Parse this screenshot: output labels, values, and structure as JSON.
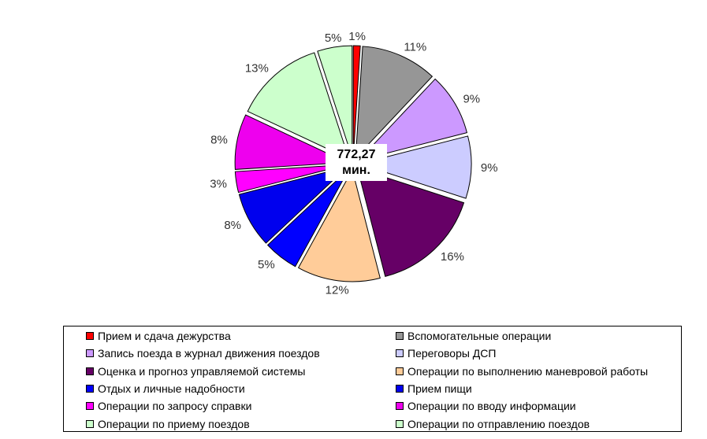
{
  "chart_data": {
    "type": "pie",
    "title": "",
    "center_label": [
      "772,27",
      "мин."
    ],
    "slices": [
      {
        "name": "Прием и сдача дежурства",
        "value": 1,
        "label": "1%",
        "color": "#ff0000"
      },
      {
        "name": "Вспомогательные операции",
        "value": 11,
        "label": "11%",
        "color": "#969696"
      },
      {
        "name": "Запись поезда в журнал движения поездов",
        "value": 9,
        "label": "9%",
        "color": "#cc99ff"
      },
      {
        "name": "Переговоры ДСП",
        "value": 9,
        "label": "9%",
        "color": "#ccccff"
      },
      {
        "name": "Оценка и прогноз управляемой системы",
        "value": 16,
        "label": "16%",
        "color": "#660066"
      },
      {
        "name": "Операции по выполнению маневровой работы",
        "value": 12,
        "label": "12%",
        "color": "#ffcc99"
      },
      {
        "name": "Отдых и личные надобности",
        "value": 5,
        "label": "5%",
        "color": "#0000ff"
      },
      {
        "name": "Прием пищи",
        "value": 8,
        "label": "8%",
        "color": "#0000ee"
      },
      {
        "name": "Операции по запросу справки",
        "value": 3,
        "label": "3%",
        "color": "#ff00ff"
      },
      {
        "name": "Операции по вводу информации",
        "value": 8,
        "label": "8%",
        "color": "#ee00ee"
      },
      {
        "name": "Операции по приему поездов",
        "value": 13,
        "label": "13%",
        "color": "#ccffcc"
      },
      {
        "name": "Операции по отправлению поездов",
        "value": 5,
        "label": "5%",
        "color": "#ccffcc"
      }
    ],
    "legend_position": "bottom"
  }
}
